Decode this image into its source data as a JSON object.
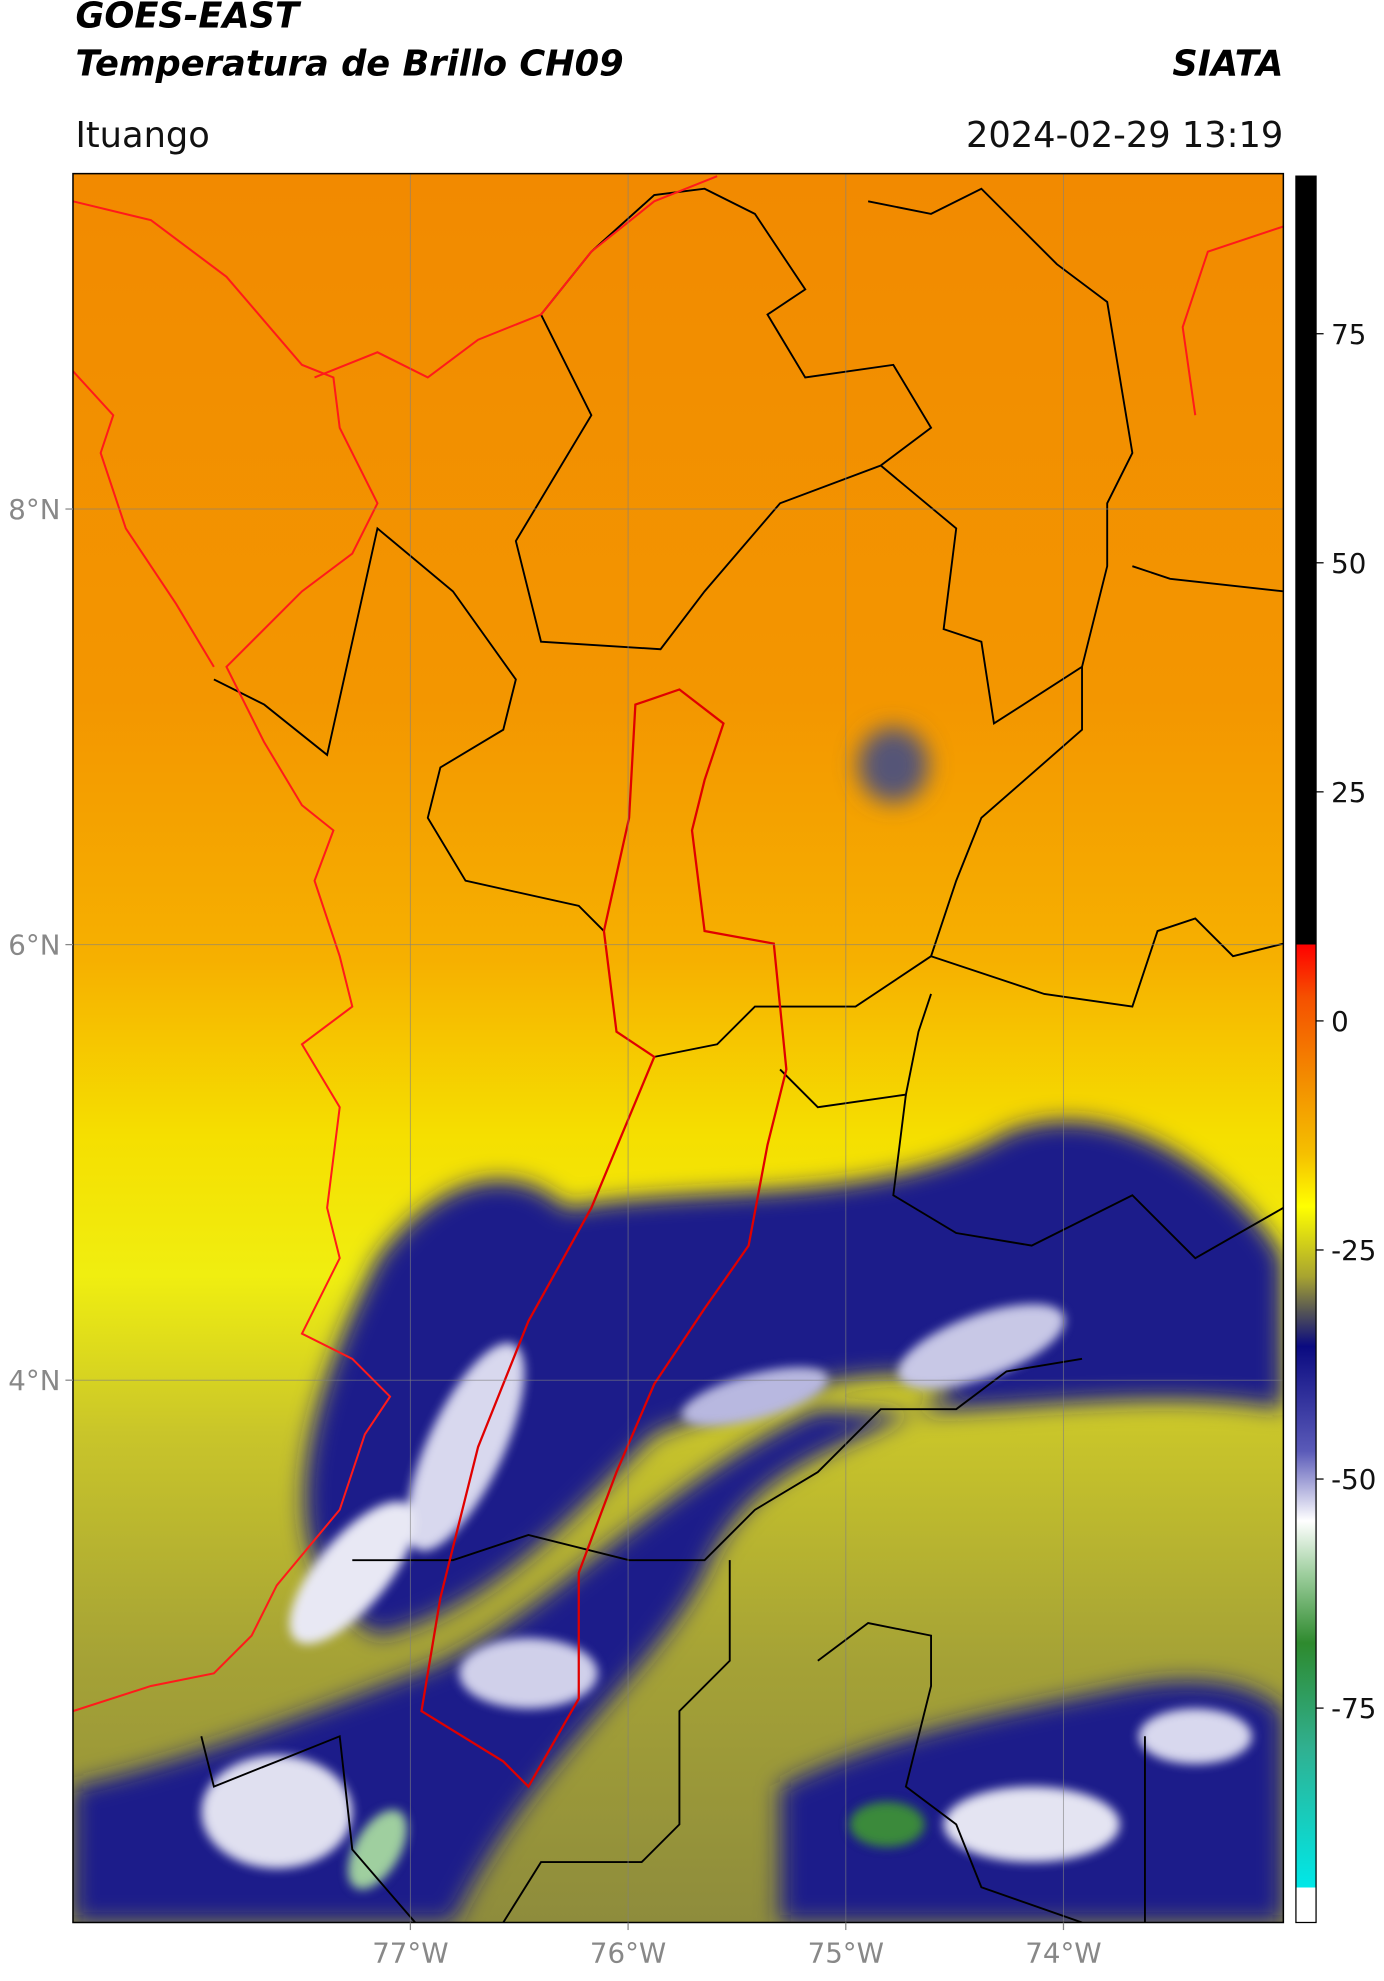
{
  "header": {
    "title": "GOES-EAST",
    "subtitle": "Temperatura de Brillo CH09",
    "organization": "SIATA",
    "location": "Ituango",
    "datetime": "2024-02-29 13:19"
  },
  "map": {
    "xlim": [
      -78.55,
      -72.99
    ],
    "ylim": [
      1.51,
      9.54
    ],
    "lat_ticks": [
      {
        "value": 8,
        "label": "8°N"
      },
      {
        "value": 6,
        "label": "6°N"
      },
      {
        "value": 4,
        "label": "4°N"
      }
    ],
    "lon_ticks": [
      {
        "value": -77,
        "label": "77°W"
      },
      {
        "value": -76,
        "label": "76°W"
      },
      {
        "value": -75,
        "label": "75°W"
      },
      {
        "value": -74,
        "label": "74°W"
      }
    ],
    "colorbar": {
      "lim": [
        -98.4,
        92.2
      ],
      "ticks": [
        75,
        50,
        25,
        0,
        -25,
        -50,
        -75
      ]
    }
  }
}
